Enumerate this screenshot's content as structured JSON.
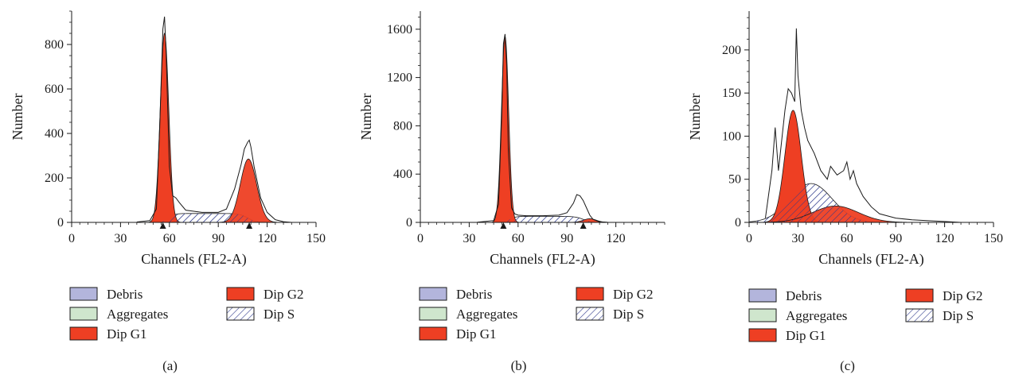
{
  "colors": {
    "g1": "#ee3f23",
    "g2": "#ee3f23",
    "debris": "#b3b5dc",
    "aggregates": "#cfe6cd",
    "s_hatch": "#2e3a8c",
    "outline": "#1a1a1a"
  },
  "chart_data": [
    {
      "type": "area",
      "panel_label": "(a)",
      "xlabel": "Channels (FL2-A)",
      "ylabel": "Number",
      "xlim": [
        0,
        150
      ],
      "ylim": [
        0,
        950
      ],
      "xticks": [
        0,
        30,
        60,
        90,
        120,
        150
      ],
      "yticks": [
        0,
        200,
        400,
        600,
        800
      ],
      "grid": false,
      "legend": [
        "Debris",
        "Aggregates",
        "Dip G1",
        "Dip G2",
        "Dip S"
      ],
      "legend_placement": "below",
      "markers": [
        56,
        109
      ],
      "series": [
        {
          "name": "Dip G1",
          "kind": "gaussian",
          "center": 57,
          "height": 850,
          "width": 2.6
        },
        {
          "name": "Dip S",
          "kind": "plateau",
          "start": 60,
          "end": 108,
          "height": 40
        },
        {
          "name": "Dip G2",
          "kind": "gaussian",
          "center": 108.5,
          "height": 285,
          "width": 5
        }
      ],
      "histogram": {
        "x": [
          40,
          48,
          52,
          54,
          56,
          57,
          58,
          60,
          62,
          64,
          66,
          70,
          80,
          90,
          95,
          100,
          104,
          106,
          108,
          109,
          110,
          112,
          116,
          120,
          125,
          130,
          135
        ],
        "y": [
          2,
          8,
          60,
          420,
          870,
          925,
          760,
          250,
          120,
          110,
          90,
          55,
          45,
          45,
          60,
          150,
          260,
          330,
          360,
          370,
          340,
          250,
          110,
          45,
          12,
          3,
          0
        ]
      }
    },
    {
      "type": "area",
      "panel_label": "(b)",
      "xlabel": "Channels (FL2-A)",
      "ylabel": "Number",
      "xlim": [
        0,
        150
      ],
      "ylim": [
        0,
        1750
      ],
      "xticks": [
        0,
        30,
        60,
        90,
        120
      ],
      "yticks": [
        0,
        400,
        800,
        1200,
        1600
      ],
      "grid": false,
      "legend": [
        "Debris",
        "Aggregates",
        "Dip G1",
        "Dip G2",
        "Dip S"
      ],
      "legend_placement": "below",
      "markers": [
        51,
        100
      ],
      "series": [
        {
          "name": "Dip G1",
          "kind": "gaussian",
          "center": 52,
          "height": 1540,
          "width": 2.2
        },
        {
          "name": "Dip S",
          "kind": "plateau",
          "start": 55,
          "end": 100,
          "height": 50
        },
        {
          "name": "Dip G2",
          "kind": "gaussian",
          "center": 104,
          "height": 30,
          "width": 4
        }
      ],
      "histogram": {
        "x": [
          35,
          45,
          48,
          50,
          51,
          52,
          53,
          54,
          56,
          58,
          60,
          65,
          75,
          85,
          90,
          94,
          96,
          98,
          100,
          102,
          104,
          106,
          110,
          115,
          120
        ],
        "y": [
          2,
          15,
          150,
          900,
          1480,
          1560,
          1300,
          600,
          120,
          70,
          60,
          55,
          55,
          60,
          80,
          160,
          230,
          220,
          180,
          120,
          60,
          25,
          5,
          1,
          0
        ]
      }
    },
    {
      "type": "area",
      "panel_label": "(c)",
      "xlabel": "Channels (FL2-A)",
      "ylabel": "Number",
      "xlim": [
        0,
        150
      ],
      "ylim": [
        0,
        245
      ],
      "xticks": [
        0,
        30,
        60,
        90,
        120,
        150
      ],
      "yticks": [
        0,
        50,
        100,
        150,
        200
      ],
      "grid": false,
      "legend": [
        "Debris",
        "Aggregates",
        "Dip G1",
        "Dip G2",
        "Dip S"
      ],
      "legend_placement": "below",
      "markers": [],
      "series": [
        {
          "name": "Dip G1",
          "kind": "gaussian",
          "center": 27,
          "height": 130,
          "width": 5
        },
        {
          "name": "Dip S",
          "kind": "gaussian",
          "center": 38,
          "height": 45,
          "width": 13
        },
        {
          "name": "Dip G2",
          "kind": "gaussian",
          "center": 53,
          "height": 19,
          "width": 14
        }
      ],
      "histogram": {
        "x": [
          10,
          14,
          16,
          18,
          20,
          22,
          24,
          26,
          28,
          29,
          30,
          32,
          34,
          36,
          40,
          44,
          48,
          50,
          54,
          58,
          60,
          62,
          64,
          66,
          70,
          75,
          80,
          90,
          100,
          110,
          120,
          130
        ],
        "y": [
          5,
          60,
          110,
          60,
          95,
          130,
          155,
          150,
          140,
          225,
          170,
          130,
          110,
          95,
          80,
          60,
          50,
          65,
          55,
          60,
          70,
          50,
          60,
          45,
          30,
          18,
          10,
          5,
          3,
          2,
          1,
          0
        ]
      }
    }
  ]
}
